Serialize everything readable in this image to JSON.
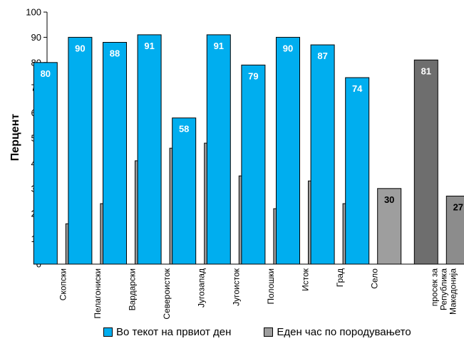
{
  "chart_data": {
    "type": "bar",
    "ylabel": "Перцент",
    "ylim": [
      0,
      100
    ],
    "yticks": [
      0,
      10,
      20,
      30,
      40,
      50,
      60,
      70,
      80,
      90,
      100
    ],
    "grid": false,
    "legend_position": "bottom",
    "categories": [
      "Скопски",
      "Пелагониски",
      "Вардарски",
      "Североисток",
      "Југозапад",
      "Југоисток",
      "Полошки",
      "Исток",
      "Град",
      "Село",
      "просек за Република Македонија"
    ],
    "category_lines": [
      [
        "Скопски"
      ],
      [
        "Пелагониски"
      ],
      [
        "Вардарски"
      ],
      [
        "Североисток"
      ],
      [
        "Југозапад"
      ],
      [
        "Југоисток"
      ],
      [
        "Полошки"
      ],
      [
        "Исток"
      ],
      [
        "Град"
      ],
      [
        "Село"
      ],
      [
        "просек за",
        "Република",
        "Македонија"
      ]
    ],
    "series": [
      {
        "name": "Во текот на првиот ден",
        "values": [
          80,
          90,
          88,
          91,
          58,
          91,
          79,
          90,
          87,
          74,
          81
        ],
        "color": "#00AEEF",
        "label_color": "#ffffff"
      },
      {
        "name": "Еден час по породувањето",
        "values": [
          16,
          24,
          41,
          46,
          48,
          35,
          22,
          33,
          24,
          30,
          27
        ],
        "color": "#9E9E9E",
        "label_color": "#000000"
      }
    ],
    "average_series_colors": [
      "#6E6E6E",
      "#8C8C8C"
    ],
    "average_label_color": "#ffffff"
  }
}
